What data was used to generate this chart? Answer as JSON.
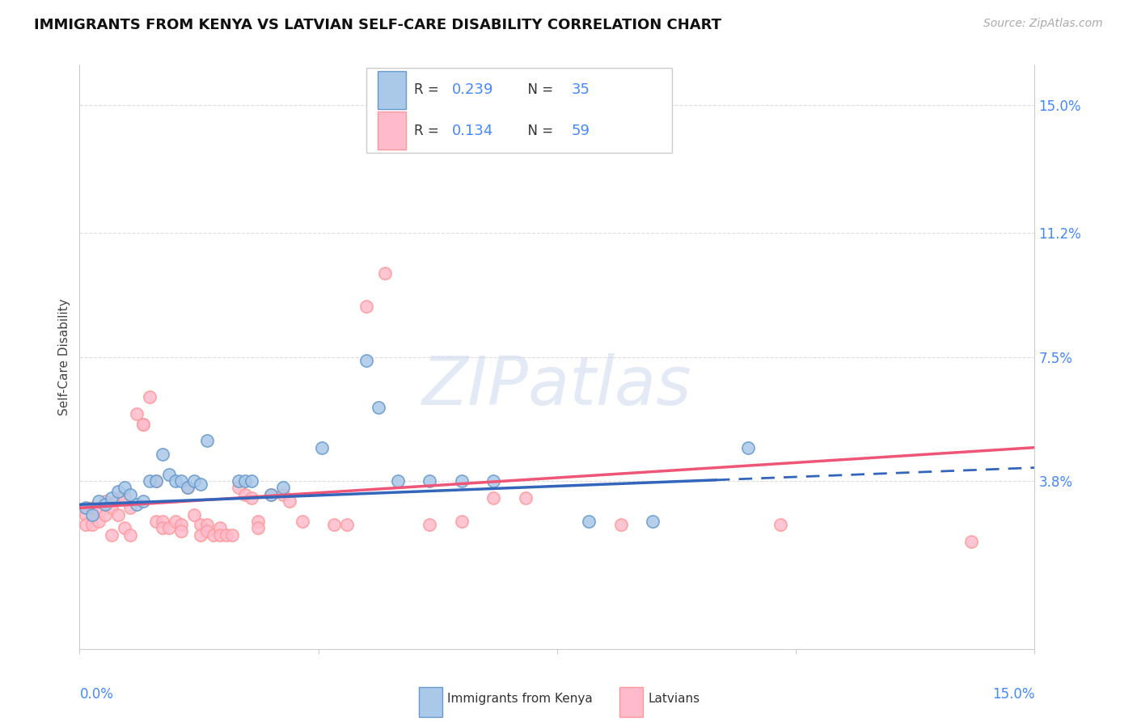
{
  "title": "IMMIGRANTS FROM KENYA VS LATVIAN SELF-CARE DISABILITY CORRELATION CHART",
  "source": "Source: ZipAtlas.com",
  "ylabel": "Self-Care Disability",
  "ytick_labels": [
    "15.0%",
    "11.2%",
    "7.5%",
    "3.8%"
  ],
  "ytick_values": [
    0.15,
    0.112,
    0.075,
    0.038
  ],
  "xlim": [
    0.0,
    0.15
  ],
  "ylim": [
    -0.012,
    0.162
  ],
  "color_blue_face": "#aac8e8",
  "color_blue_edge": "#6699CC",
  "color_pink_face": "#ffbbcc",
  "color_pink_edge": "#FF9999",
  "color_blue_line": "#3366BB",
  "color_pink_line": "#EE5577",
  "blue_scatter": [
    [
      0.001,
      0.03
    ],
    [
      0.002,
      0.028
    ],
    [
      0.003,
      0.032
    ],
    [
      0.004,
      0.031
    ],
    [
      0.005,
      0.033
    ],
    [
      0.006,
      0.035
    ],
    [
      0.007,
      0.036
    ],
    [
      0.008,
      0.034
    ],
    [
      0.009,
      0.031
    ],
    [
      0.01,
      0.032
    ],
    [
      0.011,
      0.038
    ],
    [
      0.012,
      0.038
    ],
    [
      0.013,
      0.046
    ],
    [
      0.014,
      0.04
    ],
    [
      0.015,
      0.038
    ],
    [
      0.016,
      0.038
    ],
    [
      0.017,
      0.036
    ],
    [
      0.018,
      0.038
    ],
    [
      0.019,
      0.037
    ],
    [
      0.02,
      0.05
    ],
    [
      0.025,
      0.038
    ],
    [
      0.026,
      0.038
    ],
    [
      0.027,
      0.038
    ],
    [
      0.03,
      0.034
    ],
    [
      0.032,
      0.036
    ],
    [
      0.038,
      0.048
    ],
    [
      0.045,
      0.074
    ],
    [
      0.047,
      0.06
    ],
    [
      0.05,
      0.038
    ],
    [
      0.055,
      0.038
    ],
    [
      0.06,
      0.038
    ],
    [
      0.065,
      0.038
    ],
    [
      0.08,
      0.026
    ],
    [
      0.09,
      0.026
    ],
    [
      0.105,
      0.048
    ]
  ],
  "pink_scatter": [
    [
      0.001,
      0.028
    ],
    [
      0.001,
      0.025
    ],
    [
      0.002,
      0.03
    ],
    [
      0.002,
      0.025
    ],
    [
      0.003,
      0.029
    ],
    [
      0.003,
      0.026
    ],
    [
      0.004,
      0.032
    ],
    [
      0.004,
      0.028
    ],
    [
      0.005,
      0.03
    ],
    [
      0.005,
      0.022
    ],
    [
      0.006,
      0.033
    ],
    [
      0.006,
      0.028
    ],
    [
      0.007,
      0.033
    ],
    [
      0.007,
      0.024
    ],
    [
      0.008,
      0.03
    ],
    [
      0.008,
      0.022
    ],
    [
      0.009,
      0.058
    ],
    [
      0.01,
      0.055
    ],
    [
      0.01,
      0.055
    ],
    [
      0.011,
      0.063
    ],
    [
      0.012,
      0.038
    ],
    [
      0.012,
      0.026
    ],
    [
      0.013,
      0.026
    ],
    [
      0.013,
      0.024
    ],
    [
      0.014,
      0.024
    ],
    [
      0.015,
      0.026
    ],
    [
      0.016,
      0.025
    ],
    [
      0.016,
      0.023
    ],
    [
      0.017,
      0.036
    ],
    [
      0.018,
      0.028
    ],
    [
      0.019,
      0.025
    ],
    [
      0.019,
      0.022
    ],
    [
      0.02,
      0.025
    ],
    [
      0.02,
      0.023
    ],
    [
      0.021,
      0.022
    ],
    [
      0.022,
      0.024
    ],
    [
      0.022,
      0.022
    ],
    [
      0.023,
      0.022
    ],
    [
      0.024,
      0.022
    ],
    [
      0.025,
      0.036
    ],
    [
      0.026,
      0.034
    ],
    [
      0.027,
      0.033
    ],
    [
      0.028,
      0.026
    ],
    [
      0.028,
      0.024
    ],
    [
      0.03,
      0.034
    ],
    [
      0.032,
      0.034
    ],
    [
      0.033,
      0.032
    ],
    [
      0.035,
      0.026
    ],
    [
      0.04,
      0.025
    ],
    [
      0.042,
      0.025
    ],
    [
      0.045,
      0.09
    ],
    [
      0.048,
      0.1
    ],
    [
      0.055,
      0.025
    ],
    [
      0.06,
      0.026
    ],
    [
      0.065,
      0.033
    ],
    [
      0.07,
      0.033
    ],
    [
      0.085,
      0.025
    ],
    [
      0.11,
      0.025
    ],
    [
      0.14,
      0.02
    ]
  ],
  "blue_line": {
    "x0": 0.0,
    "x1": 0.15,
    "y0": 0.031,
    "y1": 0.042
  },
  "blue_line_solid_end": 0.1,
  "pink_line": {
    "x0": 0.0,
    "x1": 0.15,
    "y0": 0.03,
    "y1": 0.048
  },
  "watermark": "ZIPatlas",
  "background_color": "#ffffff",
  "grid_color": "#dddddd",
  "xtick_minor": [
    0.0375,
    0.075,
    0.1125
  ],
  "legend_r1_num": "0.239",
  "legend_n1_num": "35",
  "legend_r2_num": "0.134",
  "legend_n2_num": "59"
}
